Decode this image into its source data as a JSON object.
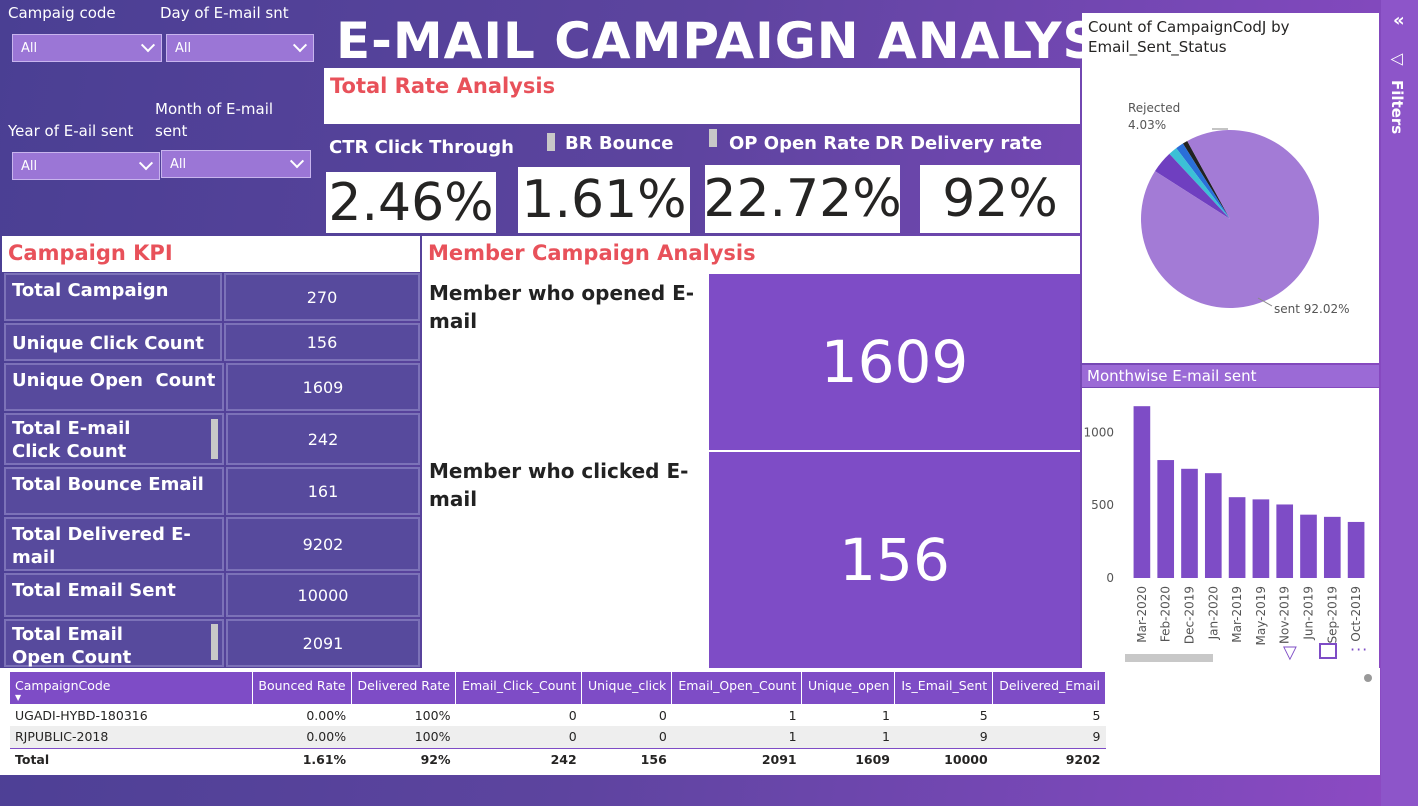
{
  "title": "E-MAIL CAMPAIGN ANALYSIS",
  "slicers": [
    {
      "label": "Campaig code",
      "value": "All"
    },
    {
      "label": "Day of E-mail snt",
      "value": "All"
    },
    {
      "label": "Year of E-ail sent",
      "value": "All"
    },
    {
      "label": "Month of E-mail sent",
      "value": "All"
    }
  ],
  "rate_section": {
    "title": "Total Rate Analysis",
    "cards": [
      {
        "label": "CTR Click Through",
        "value": "2.46%"
      },
      {
        "label": "BR Bounce",
        "value": "1.61%"
      },
      {
        "label": "OP Open Rate",
        "value": "22.72%"
      },
      {
        "label": "DR Delivery rate",
        "value": "92%"
      }
    ]
  },
  "kpi_section": {
    "title": "Campaign KPI",
    "rows": [
      {
        "label": "Total Campaign",
        "value": "270"
      },
      {
        "label": "Unique Click Count",
        "value": "156"
      },
      {
        "label": "Unique Open  Count",
        "value": "1609"
      },
      {
        "label": "Total E-mail Click Count",
        "value": "242"
      },
      {
        "label": "Total Bounce Email",
        "value": "161"
      },
      {
        "label": "Total Delivered E-mail",
        "value": "9202"
      },
      {
        "label": "Total Email Sent",
        "value": "10000"
      },
      {
        "label": "Total Email Open Count",
        "value": "2091"
      }
    ]
  },
  "member_section": {
    "title": "Member Campaign Analysis",
    "opened_label": "Member who opened E-mail",
    "opened_value": "1609",
    "clicked_label": "Member who clicked E-mail",
    "clicked_value": "156"
  },
  "filters_pane": {
    "label": "Filters",
    "collapse_icon": "double-chevron-left-icon",
    "filter_icon": "filter-icon"
  },
  "chart_data": [
    {
      "type": "pie",
      "title": "Count of CampaignCodJ by Email_Sent_Status",
      "slices": [
        {
          "label": "sent",
          "value": 92.02,
          "display": "sent 92.02%",
          "color": "#a37bd6"
        },
        {
          "label": "Rejected",
          "value": 4.03,
          "display": "Rejected\n4.03%",
          "color": "#6f3fc0"
        },
        {
          "label": "",
          "value": 1.6,
          "color": "#3cc0d6"
        },
        {
          "label": "",
          "value": 1.45,
          "color": "#2a6fd9"
        },
        {
          "label": "",
          "value": 0.9,
          "color": "#222222"
        }
      ]
    },
    {
      "type": "bar",
      "title": "Monthwise E-mail sent",
      "categories": [
        "Mar-2020",
        "Feb-2020",
        "Dec-2019",
        "Jan-2020",
        "Mar-2019",
        "May-2019",
        "Nov-2019",
        "Jun-2019",
        "Sep-2019",
        "Oct-2019"
      ],
      "values": [
        1180,
        810,
        750,
        720,
        555,
        540,
        505,
        435,
        420,
        385
      ],
      "yticks": [
        "0",
        "500",
        "1000"
      ],
      "ylim": [
        0,
        1250
      ],
      "color": "#7e4cc6"
    }
  ],
  "table": {
    "columns": [
      "CampaignCode",
      "Bounced Rate",
      "Delivered Rate",
      "Email_Click_Count",
      "Unique_click",
      "Email_Open_Count",
      "Unique_open",
      "Is_Email_Sent",
      "Delivered_Email"
    ],
    "rows": [
      [
        "UGADI-HYBD-180316",
        "0.00%",
        "100%",
        "0",
        "0",
        "1",
        "1",
        "5",
        "5"
      ],
      [
        "RJPUBLIC-2018",
        "0.00%",
        "100%",
        "0",
        "0",
        "1",
        "1",
        "9",
        "9"
      ]
    ],
    "total": [
      "Total",
      "1.61%",
      "92%",
      "242",
      "156",
      "2091",
      "1609",
      "10000",
      "9202"
    ]
  }
}
